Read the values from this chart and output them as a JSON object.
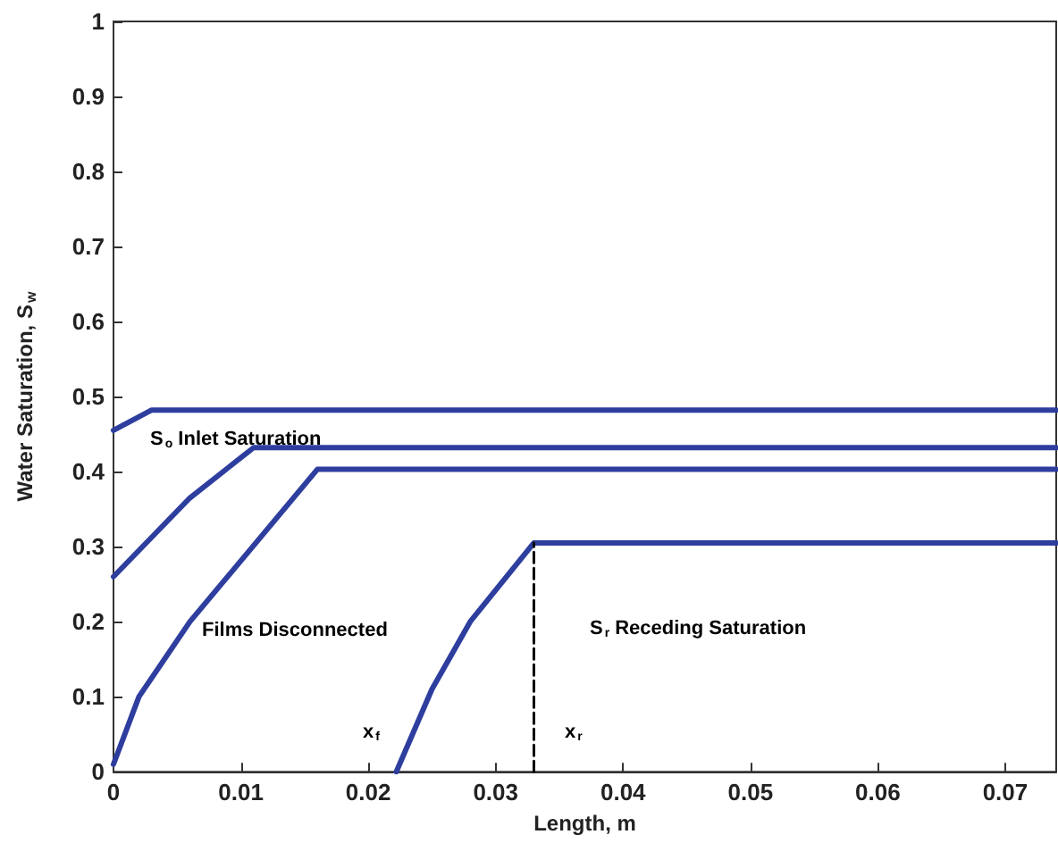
{
  "chart_data": {
    "type": "line",
    "xlabel": "Length, m",
    "ylabel": "Water Saturation, S$_{w}$",
    "xlim": [
      0,
      0.074
    ],
    "xticks": [
      0,
      0.01,
      0.02,
      0.03,
      0.04,
      0.05,
      0.06,
      0.07
    ],
    "ylim": [
      0,
      1
    ],
    "yticks": [
      0,
      0.1,
      0.2,
      0.3,
      0.4,
      0.5,
      0.6,
      0.7,
      0.8,
      0.9,
      1
    ],
    "grid": false,
    "series": [
      {
        "color": "#2e3e9e",
        "x": [
          0,
          0.003,
          0.074
        ],
        "values": [
          0.455,
          0.482,
          0.482
        ]
      },
      {
        "color": "#2e3e9e",
        "x": [
          0,
          0.006,
          0.011,
          0.074
        ],
        "values": [
          0.26,
          0.365,
          0.432,
          0.432
        ]
      },
      {
        "color": "#2e3e9e",
        "x": [
          0,
          0.002,
          0.006,
          0.016,
          0.074
        ],
        "values": [
          0.01,
          0.1,
          0.2,
          0.403,
          0.403
        ]
      },
      {
        "color": "#2e3e9e",
        "x": [
          0.0222,
          0.025,
          0.028,
          0.033,
          0.074
        ],
        "values": [
          0,
          0.11,
          0.2,
          0.305,
          0.305
        ]
      },
      {
        "color": "#000000",
        "line_style": "dashed",
        "x": [
          0.033,
          0.033
        ],
        "values": [
          0,
          0.305
        ]
      }
    ],
    "annotations": [
      "S$_{o}$ Inlet Saturation",
      "Films Disconnected",
      "S$_{r}$ Receding Saturation",
      "x$_{f}$",
      "x$_{r}$"
    ]
  }
}
